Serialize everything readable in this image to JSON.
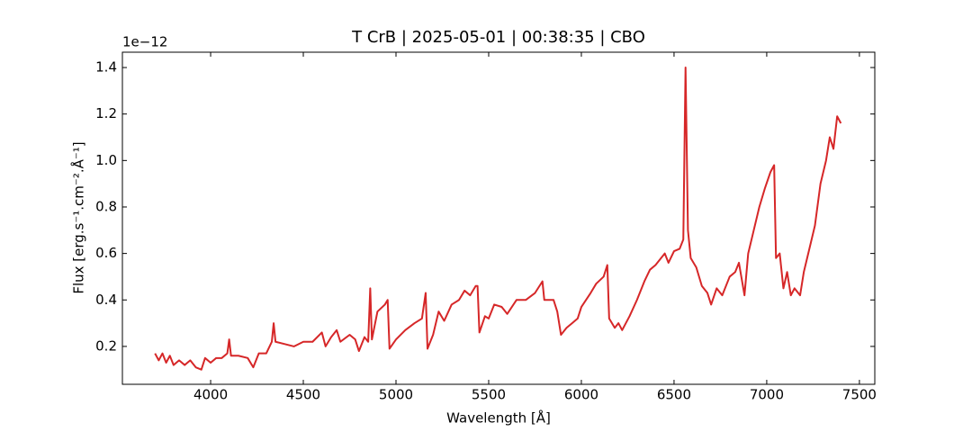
{
  "chart_data": {
    "type": "line",
    "title": "T CrB | 2025-05-01 | 00:38:35 | CBO",
    "x_label": "Wavelength [Å]",
    "y_label": "Flux [erg.s⁻¹.cm⁻².Å⁻¹]",
    "y_offset_label": "1e−12",
    "x": [
      3700,
      3720,
      3740,
      3760,
      3780,
      3800,
      3830,
      3860,
      3890,
      3920,
      3950,
      3970,
      4000,
      4030,
      4060,
      4090,
      4100,
      4110,
      4150,
      4200,
      4230,
      4260,
      4300,
      4330,
      4340,
      4350,
      4400,
      4450,
      4500,
      4550,
      4600,
      4620,
      4650,
      4680,
      4700,
      4750,
      4780,
      4800,
      4830,
      4850,
      4861,
      4870,
      4900,
      4940,
      4955,
      4965,
      5000,
      5050,
      5100,
      5140,
      5160,
      5170,
      5200,
      5230,
      5260,
      5300,
      5340,
      5370,
      5400,
      5430,
      5440,
      5450,
      5480,
      5500,
      5530,
      5570,
      5600,
      5650,
      5700,
      5750,
      5790,
      5800,
      5850,
      5870,
      5890,
      5920,
      5950,
      5980,
      6000,
      6050,
      6080,
      6120,
      6140,
      6150,
      6180,
      6200,
      6220,
      6260,
      6300,
      6340,
      6370,
      6400,
      6430,
      6450,
      6470,
      6500,
      6530,
      6550,
      6562,
      6575,
      6590,
      6620,
      6650,
      6680,
      6700,
      6730,
      6760,
      6800,
      6830,
      6850,
      6880,
      6900,
      6930,
      6960,
      6990,
      7020,
      7040,
      7050,
      7070,
      7090,
      7110,
      7130,
      7150,
      7180,
      7200,
      7230,
      7260,
      7290,
      7320,
      7340,
      7360,
      7380,
      7400
    ],
    "series": [
      {
        "color": "#d62728",
        "values": [
          0.17,
          0.14,
          0.17,
          0.13,
          0.16,
          0.12,
          0.14,
          0.12,
          0.14,
          0.11,
          0.1,
          0.15,
          0.13,
          0.15,
          0.15,
          0.17,
          0.23,
          0.16,
          0.16,
          0.15,
          0.11,
          0.17,
          0.17,
          0.22,
          0.3,
          0.22,
          0.21,
          0.2,
          0.22,
          0.22,
          0.26,
          0.2,
          0.24,
          0.27,
          0.22,
          0.25,
          0.23,
          0.18,
          0.24,
          0.22,
          0.45,
          0.23,
          0.35,
          0.38,
          0.4,
          0.19,
          0.23,
          0.27,
          0.3,
          0.32,
          0.43,
          0.19,
          0.25,
          0.35,
          0.31,
          0.38,
          0.4,
          0.44,
          0.42,
          0.46,
          0.46,
          0.26,
          0.33,
          0.32,
          0.38,
          0.37,
          0.34,
          0.4,
          0.4,
          0.43,
          0.48,
          0.4,
          0.4,
          0.35,
          0.25,
          0.28,
          0.3,
          0.32,
          0.37,
          0.43,
          0.47,
          0.5,
          0.55,
          0.32,
          0.28,
          0.3,
          0.27,
          0.33,
          0.4,
          0.48,
          0.53,
          0.55,
          0.58,
          0.6,
          0.56,
          0.61,
          0.62,
          0.66,
          1.4,
          0.7,
          0.58,
          0.54,
          0.46,
          0.43,
          0.38,
          0.45,
          0.42,
          0.5,
          0.52,
          0.56,
          0.42,
          0.6,
          0.7,
          0.8,
          0.88,
          0.95,
          0.98,
          0.58,
          0.6,
          0.45,
          0.52,
          0.42,
          0.45,
          0.42,
          0.52,
          0.62,
          0.72,
          0.9,
          1.0,
          1.1,
          1.05,
          1.19,
          1.16
        ]
      }
    ],
    "xlim": [
      3524,
      7583
    ],
    "ylim": [
      0.037,
      1.466
    ],
    "xticks": [
      4000,
      4500,
      5000,
      5500,
      6000,
      6500,
      7000,
      7500
    ],
    "yticks": [
      0.2,
      0.4,
      0.6,
      0.8,
      {
        "value": 1,
        "label": "1.0"
      },
      1.2,
      1.4
    ]
  }
}
